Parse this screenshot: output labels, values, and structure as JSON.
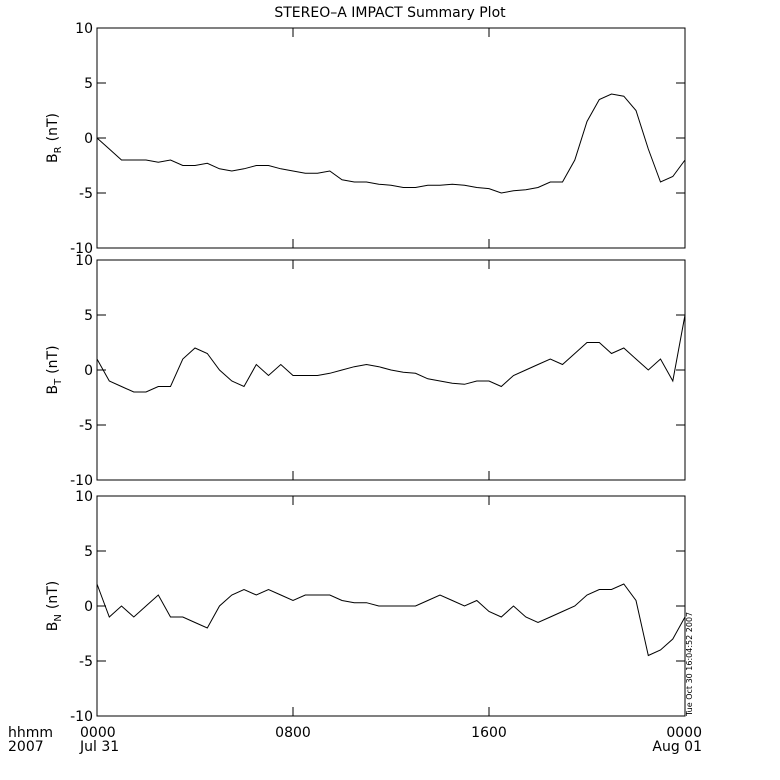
{
  "title": "STEREO–A IMPACT Summary Plot",
  "corner_labels": [
    "hhmm",
    "2007"
  ],
  "timestamp": "Tue Oct 30 16:04:52 2007",
  "chart_data": [
    {
      "type": "line",
      "ylabel": {
        "symbol": "B",
        "subscript": "R",
        "unit": "(nT)"
      },
      "x": [
        0,
        0.5,
        1,
        1.5,
        2,
        2.5,
        3,
        3.5,
        4,
        4.5,
        5,
        5.5,
        6,
        6.5,
        7,
        7.5,
        8,
        8.5,
        9,
        9.5,
        10,
        10.5,
        11,
        11.5,
        12,
        12.5,
        13,
        13.5,
        14,
        14.5,
        15,
        15.5,
        16,
        16.5,
        17,
        17.5,
        18,
        18.5,
        19,
        19.5,
        20,
        20.5,
        21,
        21.5,
        22,
        22.5,
        23,
        23.5,
        24
      ],
      "values": [
        0,
        -1,
        -2,
        -2,
        -2,
        -2.2,
        -2,
        -2.5,
        -2.5,
        -2.3,
        -2.8,
        -3,
        -2.8,
        -2.5,
        -2.5,
        -2.8,
        -3,
        -3.2,
        -3.2,
        -3,
        -3.8,
        -4,
        -4,
        -4.2,
        -4.3,
        -4.5,
        -4.5,
        -4.3,
        -4.3,
        -4.2,
        -4.3,
        -4.5,
        -4.6,
        -5,
        -4.8,
        -4.7,
        -4.5,
        -4,
        -4,
        -2,
        1.5,
        3.5,
        4,
        3.8,
        2.5,
        -1,
        -4,
        -3.5,
        -2
      ],
      "color": "#000000",
      "xlim": [
        0,
        24
      ],
      "xticks": [
        {
          "value": 0,
          "label": "0000"
        },
        {
          "value": 8,
          "label": "0800"
        },
        {
          "value": 16,
          "label": "1600"
        },
        {
          "value": 24,
          "label": "0000"
        }
      ],
      "ylim": [
        -10,
        10
      ],
      "yticks": [
        -10,
        -5,
        0,
        5,
        10
      ]
    },
    {
      "type": "line",
      "ylabel": {
        "symbol": "B",
        "subscript": "T",
        "unit": "(nT)"
      },
      "x": [
        0,
        0.5,
        1,
        1.5,
        2,
        2.5,
        3,
        3.5,
        4,
        4.5,
        5,
        5.5,
        6,
        6.5,
        7,
        7.5,
        8,
        8.5,
        9,
        9.5,
        10,
        10.5,
        11,
        11.5,
        12,
        12.5,
        13,
        13.5,
        14,
        14.5,
        15,
        15.5,
        16,
        16.5,
        17,
        17.5,
        18,
        18.5,
        19,
        19.5,
        20,
        20.5,
        21,
        21.5,
        22,
        22.5,
        23,
        23.5,
        24
      ],
      "values": [
        1,
        -1,
        -1.5,
        -2,
        -2,
        -1.5,
        -1.5,
        1,
        2,
        1.5,
        0,
        -1,
        -1.5,
        0.5,
        -0.5,
        0.5,
        -0.5,
        -0.5,
        -0.5,
        -0.3,
        0,
        0.3,
        0.5,
        0.3,
        0,
        -0.2,
        -0.3,
        -0.8,
        -1,
        -1.2,
        -1.3,
        -1,
        -1,
        -1.5,
        -0.5,
        0,
        0.5,
        1,
        0.5,
        1.5,
        2.5,
        2.5,
        1.5,
        2,
        1,
        0,
        1,
        -1,
        5
      ],
      "color": "#000000",
      "xlim": [
        0,
        24
      ],
      "xticks": [
        {
          "value": 0,
          "label": "0000"
        },
        {
          "value": 8,
          "label": "0800"
        },
        {
          "value": 16,
          "label": "1600"
        },
        {
          "value": 24,
          "label": "0000"
        }
      ],
      "ylim": [
        -10,
        10
      ],
      "yticks": [
        -10,
        -5,
        0,
        5,
        10
      ]
    },
    {
      "type": "line",
      "ylabel": {
        "symbol": "B",
        "subscript": "N",
        "unit": "(nT)"
      },
      "x": [
        0,
        0.5,
        1,
        1.5,
        2,
        2.5,
        3,
        3.5,
        4,
        4.5,
        5,
        5.5,
        6,
        6.5,
        7,
        7.5,
        8,
        8.5,
        9,
        9.5,
        10,
        10.5,
        11,
        11.5,
        12,
        12.5,
        13,
        13.5,
        14,
        14.5,
        15,
        15.5,
        16,
        16.5,
        17,
        17.5,
        18,
        18.5,
        19,
        19.5,
        20,
        20.5,
        21,
        21.5,
        22,
        22.5,
        23,
        23.5,
        24
      ],
      "values": [
        2,
        -1,
        0,
        -1,
        0,
        1,
        -1,
        -1,
        -1.5,
        -2,
        0,
        1,
        1.5,
        1,
        1.5,
        1,
        0.5,
        1,
        1,
        1,
        0.5,
        0.3,
        0.3,
        0,
        0,
        0,
        0,
        0.5,
        1,
        0.5,
        0,
        0.5,
        -0.5,
        -1,
        0,
        -1,
        -1.5,
        -1,
        -0.5,
        0,
        1,
        1.5,
        1.5,
        2,
        0.5,
        -4.5,
        -4,
        -3,
        -1
      ],
      "color": "#000000",
      "xlim": [
        0,
        24
      ],
      "xticks": [
        {
          "value": 0,
          "label": "0000",
          "date": "Jul 31"
        },
        {
          "value": 8,
          "label": "0800"
        },
        {
          "value": 16,
          "label": "1600"
        },
        {
          "value": 24,
          "label": "0000",
          "date": "Aug 01"
        }
      ],
      "ylim": [
        -10,
        10
      ],
      "yticks": [
        -10,
        -5,
        0,
        5,
        10
      ]
    }
  ]
}
